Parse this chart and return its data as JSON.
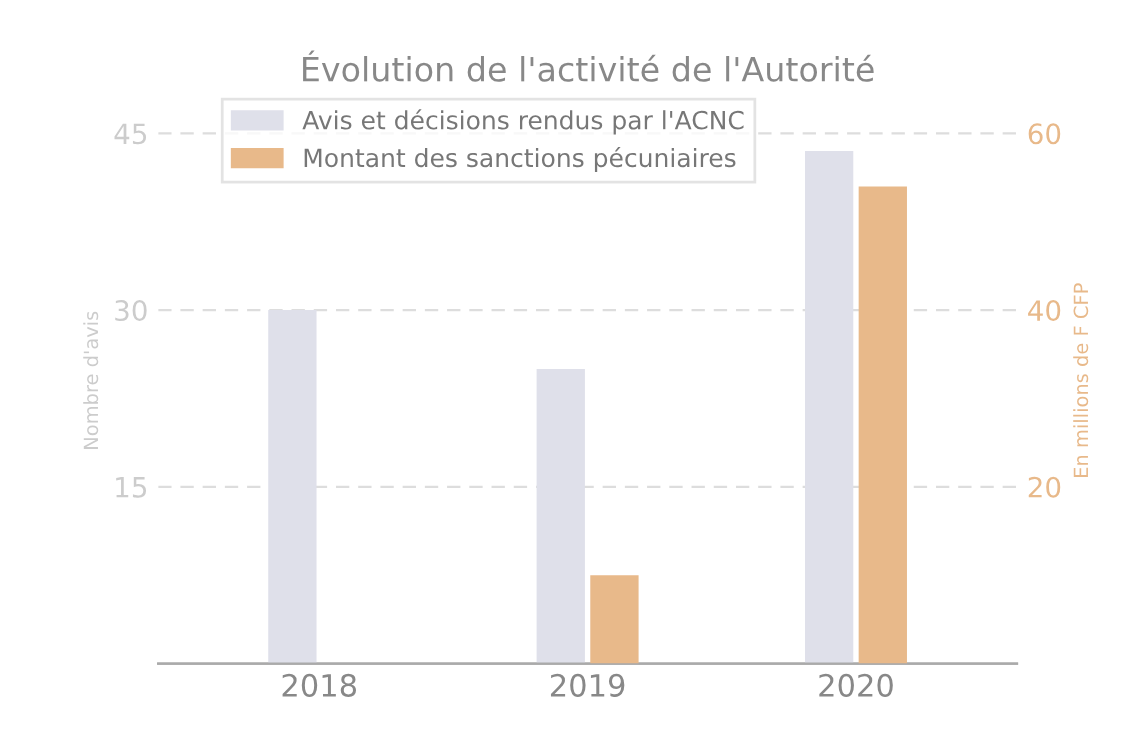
{
  "chart_data": {
    "type": "bar",
    "title": "Évolution de l'activité de l'Autorité",
    "categories": [
      "2018",
      "2019",
      "2020"
    ],
    "series": [
      {
        "name": "Avis et décisions rendus par l'ACNC",
        "color": "#dfe0ea",
        "values": [
          30,
          25,
          43.5
        ]
      },
      {
        "name": "Montant des sanctions pécuniaires",
        "color": "#e8b98a",
        "values": [
          null,
          10,
          54
        ],
        "axis": "y2"
      }
    ],
    "ylabel": "Nombre d'avis",
    "y2label": "En millions de F CFP",
    "ylim": [
      0,
      48
    ],
    "yticks": [
      15,
      30,
      45
    ],
    "y2lim": [
      0,
      64
    ],
    "y2ticks": [
      20,
      40,
      60
    ],
    "grid": "y",
    "legend": "top left"
  }
}
